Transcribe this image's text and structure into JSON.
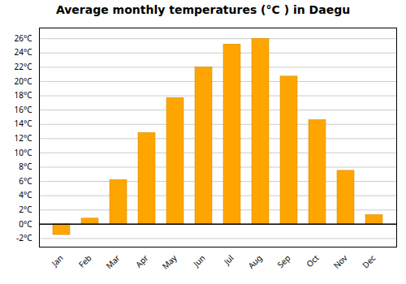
{
  "chart_data": {
    "type": "bar",
    "title": "Average monthly temperatures (°C ) in Daegu",
    "categories": [
      "Jan",
      "Feb",
      "Mar",
      "Apr",
      "May",
      "Jun",
      "Jul",
      "Aug",
      "Sep",
      "Oct",
      "Nov",
      "Dec"
    ],
    "values": [
      -1.5,
      0.8,
      6.2,
      12.8,
      17.7,
      22.0,
      25.2,
      26.0,
      20.7,
      14.6,
      7.5,
      1.3
    ],
    "color": "#FFA500",
    "ylim": [
      -3.2,
      27.5
    ],
    "yticks": [
      {
        "value": -2,
        "label": "-2°C"
      },
      {
        "value": 0,
        "label": "0°C"
      },
      {
        "value": 2,
        "label": "2°C"
      },
      {
        "value": 4,
        "label": "4°C"
      },
      {
        "value": 6,
        "label": "6°C"
      },
      {
        "value": 8,
        "label": "8°C"
      },
      {
        "value": 10,
        "label": "10°C"
      },
      {
        "value": 12,
        "label": "12°C"
      },
      {
        "value": 14,
        "label": "14°C"
      },
      {
        "value": 16,
        "label": "16°C"
      },
      {
        "value": 18,
        "label": "18°C"
      },
      {
        "value": 20,
        "label": "20°C"
      },
      {
        "value": 22,
        "label": "22°C"
      },
      {
        "value": 24,
        "label": "24°C"
      },
      {
        "value": 26,
        "label": "26°C"
      }
    ],
    "grid": true
  }
}
